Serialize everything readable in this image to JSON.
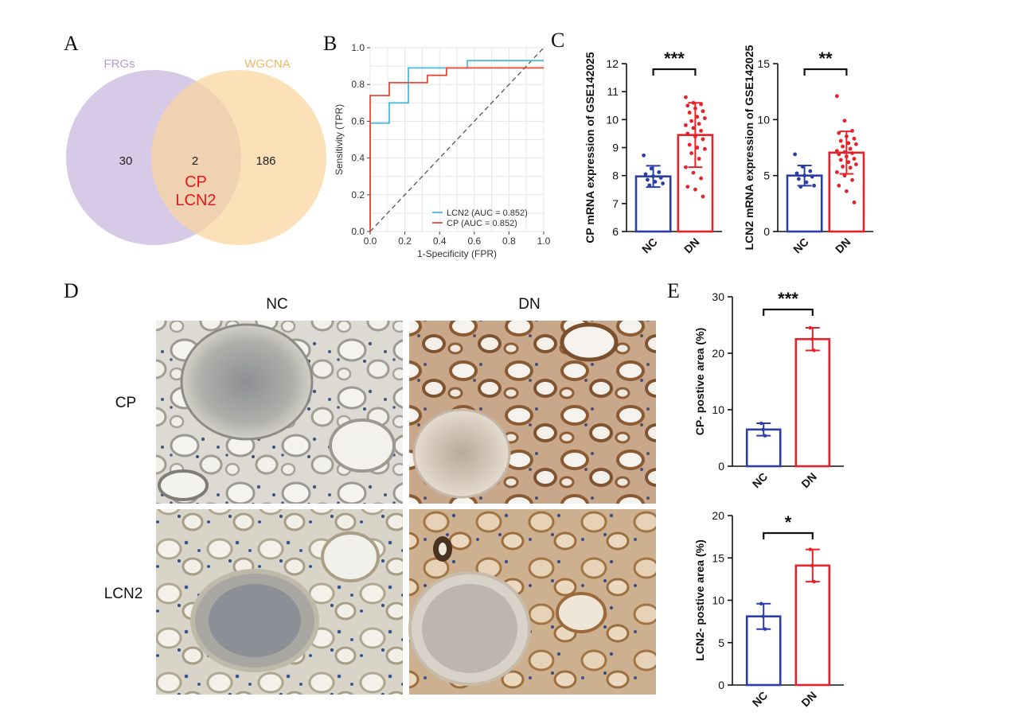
{
  "panels": {
    "A": "A",
    "B": "B",
    "C": "C",
    "D": "D",
    "E": "E"
  },
  "venn": {
    "set1": {
      "label": "FRGs",
      "unique": "30"
    },
    "set2": {
      "label": "WGCNA",
      "unique": "186"
    },
    "overlap": {
      "count": "2",
      "genes": [
        "CP",
        "LCN2"
      ]
    },
    "colors": {
      "set1": "#c9b8de",
      "set2": "#fbd49a",
      "overlap_text": "#e0191b",
      "set1_label": "#b49bd1",
      "set2_label": "#f0b860"
    }
  },
  "ihc": {
    "columns": [
      "NC",
      "DN"
    ],
    "rows": [
      "CP",
      "LCN2"
    ]
  },
  "chart_data": [
    {
      "id": "roc",
      "type": "line",
      "xlabel": "1-Specificity (FPR)",
      "ylabel": "Sensitivity (TPR)",
      "xlim": [
        0,
        1
      ],
      "ylim": [
        0,
        1
      ],
      "xticks": [
        "0.0",
        "0.2",
        "0.4",
        "0.6",
        "0.8",
        "1.0"
      ],
      "yticks": [
        "0.0",
        "0.2",
        "0.4",
        "0.6",
        "0.8",
        "1.0"
      ],
      "grid": true,
      "legend_position": "bottom-right",
      "series": [
        {
          "name": "LCN2 (AUC = 0.852)",
          "color": "#4dbbd5",
          "x": [
            0,
            0,
            0.11,
            0.11,
            0.22,
            0.22,
            0.56,
            0.56,
            1.0
          ],
          "y": [
            0,
            0.59,
            0.59,
            0.7,
            0.7,
            0.89,
            0.89,
            0.93,
            0.93
          ]
        },
        {
          "name": "CP (AUC = 0.852)",
          "color": "#e64b35",
          "x": [
            0,
            0,
            0.11,
            0.11,
            0.33,
            0.33,
            0.44,
            0.44,
            0.56,
            0.56,
            1.0
          ],
          "y": [
            0,
            0.74,
            0.74,
            0.81,
            0.81,
            0.85,
            0.85,
            0.89,
            0.89,
            0.89,
            0.89
          ]
        }
      ],
      "reference_line": "diagonal"
    },
    {
      "id": "cp_expr",
      "type": "bar",
      "ylabel": "CP mRNA expression of GSE142025",
      "ylim": [
        6,
        12
      ],
      "yticks": [
        "6",
        "7",
        "8",
        "9",
        "10",
        "11",
        "12"
      ],
      "categories": [
        "NC",
        "DN"
      ],
      "values": [
        7.97,
        9.45
      ],
      "sd": [
        0.38,
        1.15
      ],
      "colors": [
        "#2b3ea8",
        "#e5222a"
      ],
      "points": [
        [
          8.72,
          8.25,
          8.12,
          8.05,
          7.98,
          7.92,
          7.85,
          7.78,
          7.72,
          7.65
        ],
        [
          10.8,
          10.6,
          10.55,
          10.5,
          10.4,
          10.3,
          10.25,
          10.1,
          10.05,
          9.95,
          9.85,
          9.8,
          9.7,
          9.6,
          9.5,
          9.4,
          9.3,
          9.1,
          9.0,
          8.95,
          8.8,
          8.6,
          8.3,
          8.1,
          7.9,
          7.6,
          7.5,
          7.25
        ]
      ],
      "significance": "***"
    },
    {
      "id": "lcn2_expr",
      "type": "bar",
      "ylabel": "LCN2 mRNA expression of GSE142025",
      "ylim": [
        0,
        15
      ],
      "yticks": [
        "0",
        "5",
        "10",
        "15"
      ],
      "categories": [
        "NC",
        "DN"
      ],
      "values": [
        5.0,
        7.05
      ],
      "sd": [
        0.9,
        1.9
      ],
      "colors": [
        "#2b3ea8",
        "#e5222a"
      ],
      "points": [
        [
          6.9,
          5.8,
          5.4,
          5.2,
          5.0,
          4.9,
          4.7,
          4.4,
          4.1,
          4.0
        ],
        [
          12.1,
          9.9,
          9.0,
          8.8,
          8.5,
          8.3,
          8.1,
          7.9,
          7.8,
          7.6,
          7.4,
          7.2,
          7.1,
          7.0,
          6.9,
          6.7,
          6.5,
          6.4,
          6.2,
          6.0,
          5.8,
          5.7,
          5.3,
          5.0,
          4.6,
          4.1,
          3.6,
          2.6
        ]
      ],
      "significance": "**"
    },
    {
      "id": "cp_area",
      "type": "bar",
      "ylabel": "CP- postive area (%)",
      "ylim": [
        0,
        30
      ],
      "yticks": [
        "0",
        "10",
        "20",
        "30"
      ],
      "categories": [
        "NC",
        "DN"
      ],
      "values": [
        6.5,
        22.5
      ],
      "sd": [
        1.1,
        2.0
      ],
      "colors": [
        "#2b3ea8",
        "#e5222a"
      ],
      "points": [
        [
          7.6,
          6.5,
          5.4
        ],
        [
          24.5,
          22.5,
          20.5
        ]
      ],
      "significance": "***"
    },
    {
      "id": "lcn2_area",
      "type": "bar",
      "ylabel": "LCN2- postive area (%)",
      "ylim": [
        0,
        20
      ],
      "yticks": [
        "0",
        "5",
        "10",
        "15",
        "20"
      ],
      "categories": [
        "NC",
        "DN"
      ],
      "values": [
        8.1,
        14.1
      ],
      "sd": [
        1.5,
        1.9
      ],
      "colors": [
        "#2b3ea8",
        "#e5222a"
      ],
      "points": [
        [
          9.6,
          8.1,
          6.6
        ],
        [
          16.0,
          14.1,
          12.2
        ]
      ],
      "significance": "*"
    }
  ]
}
